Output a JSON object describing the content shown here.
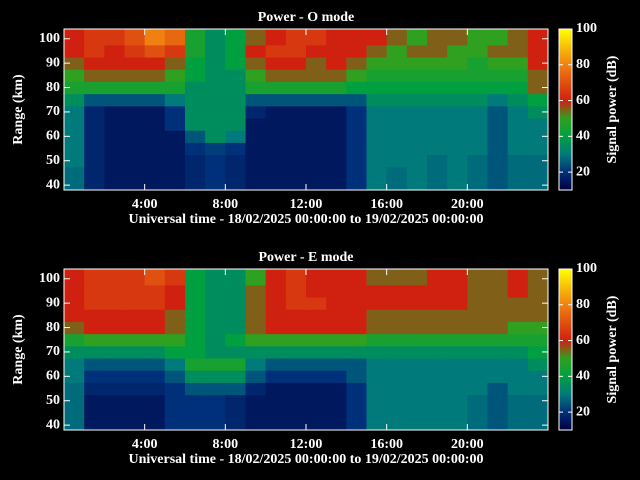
{
  "chart_data": [
    {
      "type": "heatmap",
      "title": "Power - O mode",
      "x_label": "Universal time - 18/02/2025 00:00:00 to 19/02/2025 00:00:00",
      "y_label": "Range (km)",
      "colorbar_label": "Signal power (dB)",
      "x": [
        0.5,
        1.5,
        2.5,
        3.5,
        4.5,
        5.5,
        6.5,
        7.5,
        8.5,
        9.5,
        10.5,
        11.5,
        12.5,
        13.5,
        14.5,
        15.5,
        16.5,
        17.5,
        18.5,
        19.5,
        20.5,
        21.5,
        22.5,
        23.5
      ],
      "y": [
        40,
        45,
        50,
        55,
        60,
        65,
        70,
        75,
        80,
        85,
        90,
        95,
        100
      ],
      "z": [
        [
          28,
          18,
          15,
          15,
          15,
          15,
          18,
          20,
          18,
          15,
          15,
          15,
          15,
          15,
          20,
          30,
          28,
          30,
          28,
          30,
          28,
          25,
          28,
          28
        ],
        [
          28,
          18,
          15,
          15,
          15,
          15,
          18,
          20,
          18,
          15,
          15,
          15,
          15,
          15,
          20,
          30,
          28,
          30,
          28,
          30,
          28,
          25,
          28,
          28
        ],
        [
          30,
          18,
          15,
          15,
          15,
          15,
          18,
          20,
          18,
          15,
          15,
          15,
          15,
          15,
          20,
          30,
          30,
          30,
          28,
          30,
          28,
          25,
          28,
          28
        ],
        [
          30,
          18,
          15,
          15,
          15,
          15,
          20,
          22,
          20,
          15,
          15,
          15,
          15,
          15,
          20,
          30,
          30,
          30,
          30,
          30,
          30,
          25,
          30,
          30
        ],
        [
          30,
          18,
          15,
          15,
          15,
          15,
          25,
          35,
          30,
          15,
          15,
          15,
          15,
          15,
          20,
          30,
          30,
          30,
          30,
          30,
          30,
          25,
          30,
          30
        ],
        [
          30,
          18,
          15,
          15,
          15,
          20,
          35,
          35,
          35,
          15,
          15,
          15,
          15,
          15,
          20,
          30,
          30,
          30,
          30,
          30,
          30,
          25,
          30,
          30
        ],
        [
          30,
          18,
          15,
          15,
          15,
          20,
          35,
          35,
          35,
          18,
          15,
          15,
          15,
          15,
          20,
          30,
          30,
          30,
          30,
          30,
          30,
          25,
          30,
          35
        ],
        [
          35,
          25,
          25,
          25,
          25,
          30,
          35,
          35,
          35,
          25,
          25,
          25,
          25,
          25,
          25,
          35,
          35,
          35,
          35,
          35,
          35,
          30,
          35,
          40
        ],
        [
          45,
          45,
          45,
          45,
          45,
          45,
          35,
          35,
          35,
          45,
          45,
          45,
          45,
          45,
          40,
          40,
          40,
          40,
          40,
          40,
          40,
          40,
          40,
          55
        ],
        [
          50,
          55,
          55,
          55,
          55,
          50,
          40,
          35,
          35,
          50,
          55,
          55,
          55,
          55,
          50,
          45,
          45,
          45,
          45,
          45,
          45,
          45,
          45,
          55
        ],
        [
          55,
          60,
          60,
          60,
          60,
          55,
          40,
          35,
          40,
          55,
          60,
          60,
          55,
          60,
          55,
          50,
          50,
          50,
          50,
          50,
          45,
          50,
          50,
          60
        ],
        [
          60,
          65,
          60,
          65,
          70,
          65,
          45,
          35,
          40,
          60,
          65,
          65,
          60,
          60,
          60,
          55,
          50,
          55,
          55,
          50,
          50,
          55,
          55,
          60
        ],
        [
          60,
          65,
          65,
          70,
          80,
          75,
          45,
          35,
          40,
          55,
          60,
          65,
          65,
          60,
          60,
          60,
          55,
          50,
          55,
          55,
          50,
          50,
          55,
          60
        ]
      ],
      "xlim": [
        0,
        24
      ],
      "ylim": [
        38,
        104
      ],
      "zlim": [
        10,
        100
      ],
      "xticks": [
        {
          "value": 4,
          "label": "4:00"
        },
        {
          "value": 8,
          "label": "8:00"
        },
        {
          "value": 12,
          "label": "12:00"
        },
        {
          "value": 16,
          "label": "16:00"
        },
        {
          "value": 20,
          "label": "20:00"
        }
      ],
      "yticks": [
        40,
        50,
        60,
        70,
        80,
        90,
        100
      ],
      "zticks": [
        20,
        40,
        60,
        80,
        100
      ],
      "colorscale": [
        {
          "value": 10,
          "color": "#000040"
        },
        {
          "value": 20,
          "color": "#00307a"
        },
        {
          "value": 30,
          "color": "#007a7a"
        },
        {
          "value": 40,
          "color": "#00a040"
        },
        {
          "value": 50,
          "color": "#30a020"
        },
        {
          "value": 60,
          "color": "#d02010"
        },
        {
          "value": 80,
          "color": "#f08010"
        },
        {
          "value": 100,
          "color": "#ffff00"
        }
      ]
    },
    {
      "type": "heatmap",
      "title": "Power - E mode",
      "x_label": "Universal time - 18/02/2025 00:00:00 to 19/02/2025 00:00:00",
      "y_label": "Range (km)",
      "colorbar_label": "Signal power (dB)",
      "x": [
        0.5,
        1.5,
        2.5,
        3.5,
        4.5,
        5.5,
        6.5,
        7.5,
        8.5,
        9.5,
        10.5,
        11.5,
        12.5,
        13.5,
        14.5,
        15.5,
        16.5,
        17.5,
        18.5,
        19.5,
        20.5,
        21.5,
        22.5,
        23.5
      ],
      "y": [
        40,
        45,
        50,
        55,
        60,
        65,
        70,
        75,
        80,
        85,
        90,
        95,
        100
      ],
      "z": [
        [
          28,
          15,
          15,
          15,
          15,
          20,
          20,
          20,
          18,
          15,
          15,
          15,
          15,
          15,
          20,
          30,
          30,
          30,
          30,
          30,
          28,
          25,
          28,
          28
        ],
        [
          28,
          15,
          15,
          15,
          15,
          20,
          20,
          20,
          18,
          15,
          15,
          15,
          15,
          15,
          20,
          30,
          30,
          30,
          30,
          30,
          28,
          25,
          28,
          28
        ],
        [
          28,
          15,
          15,
          15,
          15,
          20,
          20,
          20,
          18,
          15,
          15,
          15,
          15,
          15,
          20,
          30,
          30,
          30,
          30,
          30,
          28,
          25,
          28,
          28
        ],
        [
          28,
          18,
          18,
          18,
          18,
          20,
          25,
          25,
          25,
          18,
          15,
          15,
          15,
          15,
          20,
          30,
          30,
          30,
          30,
          30,
          30,
          25,
          30,
          30
        ],
        [
          30,
          20,
          20,
          20,
          20,
          25,
          35,
          35,
          35,
          25,
          20,
          20,
          20,
          20,
          25,
          30,
          30,
          30,
          30,
          30,
          30,
          30,
          30,
          30
        ],
        [
          30,
          25,
          25,
          25,
          25,
          30,
          45,
          45,
          45,
          30,
          25,
          25,
          25,
          25,
          25,
          30,
          30,
          30,
          30,
          30,
          30,
          30,
          30,
          35
        ],
        [
          35,
          35,
          35,
          35,
          35,
          40,
          40,
          35,
          35,
          35,
          35,
          35,
          35,
          35,
          35,
          35,
          35,
          35,
          35,
          35,
          35,
          35,
          35,
          40
        ],
        [
          45,
          50,
          50,
          50,
          50,
          50,
          40,
          35,
          40,
          50,
          50,
          50,
          50,
          50,
          50,
          45,
          45,
          45,
          45,
          45,
          45,
          45,
          45,
          45
        ],
        [
          55,
          60,
          60,
          60,
          60,
          55,
          40,
          35,
          35,
          55,
          60,
          60,
          60,
          60,
          60,
          55,
          55,
          55,
          55,
          55,
          55,
          55,
          50,
          50
        ],
        [
          60,
          60,
          60,
          60,
          60,
          55,
          40,
          35,
          35,
          55,
          60,
          60,
          60,
          60,
          60,
          55,
          55,
          55,
          55,
          55,
          55,
          55,
          55,
          55
        ],
        [
          60,
          65,
          65,
          65,
          65,
          60,
          40,
          35,
          35,
          55,
          60,
          65,
          65,
          60,
          60,
          60,
          60,
          60,
          60,
          60,
          55,
          55,
          55,
          55
        ],
        [
          60,
          65,
          65,
          65,
          65,
          60,
          40,
          35,
          35,
          55,
          60,
          65,
          60,
          60,
          60,
          60,
          60,
          60,
          60,
          60,
          55,
          55,
          60,
          55
        ],
        [
          60,
          65,
          65,
          65,
          70,
          65,
          40,
          35,
          35,
          50,
          60,
          65,
          60,
          60,
          60,
          55,
          55,
          55,
          60,
          60,
          55,
          55,
          60,
          55
        ]
      ],
      "xlim": [
        0,
        24
      ],
      "ylim": [
        38,
        104
      ],
      "zlim": [
        10,
        100
      ],
      "xticks": [
        {
          "value": 4,
          "label": "4:00"
        },
        {
          "value": 8,
          "label": "8:00"
        },
        {
          "value": 12,
          "label": "12:00"
        },
        {
          "value": 16,
          "label": "16:00"
        },
        {
          "value": 20,
          "label": "20:00"
        }
      ],
      "yticks": [
        40,
        50,
        60,
        70,
        80,
        90,
        100
      ],
      "zticks": [
        20,
        40,
        60,
        80,
        100
      ],
      "colorscale": [
        {
          "value": 10,
          "color": "#000040"
        },
        {
          "value": 20,
          "color": "#00307a"
        },
        {
          "value": 30,
          "color": "#007a7a"
        },
        {
          "value": 40,
          "color": "#00a040"
        },
        {
          "value": 50,
          "color": "#30a020"
        },
        {
          "value": 60,
          "color": "#d02010"
        },
        {
          "value": 80,
          "color": "#f08010"
        },
        {
          "value": 100,
          "color": "#ffff00"
        }
      ]
    }
  ]
}
